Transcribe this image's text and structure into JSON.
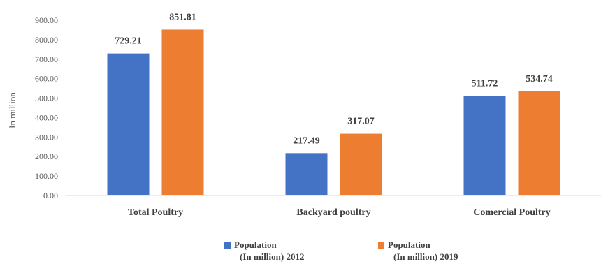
{
  "chart_data": {
    "type": "bar",
    "categories": [
      "Total Poultry",
      "Backyard poultry",
      "Comercial Poultry"
    ],
    "series": [
      {
        "name_lines": [
          "Population",
          "(In million) 2012"
        ],
        "values": [
          729.21,
          217.49,
          511.72
        ],
        "labels": [
          "729.21",
          "217.49",
          "511.72"
        ],
        "color": "#4472C4"
      },
      {
        "name_lines": [
          "Population",
          "(In million) 2019"
        ],
        "values": [
          851.81,
          317.07,
          534.74
        ],
        "labels": [
          "851.81",
          "317.07",
          "534.74"
        ],
        "color": "#ED7D31"
      }
    ],
    "ylabel": "In million",
    "ylim": [
      0,
      900
    ],
    "yticks": [
      "0.00",
      "100.00",
      "200.00",
      "300.00",
      "400.00",
      "500.00",
      "600.00",
      "700.00",
      "800.00",
      "900.00"
    ],
    "grid": false,
    "legend_position": "bottom"
  }
}
